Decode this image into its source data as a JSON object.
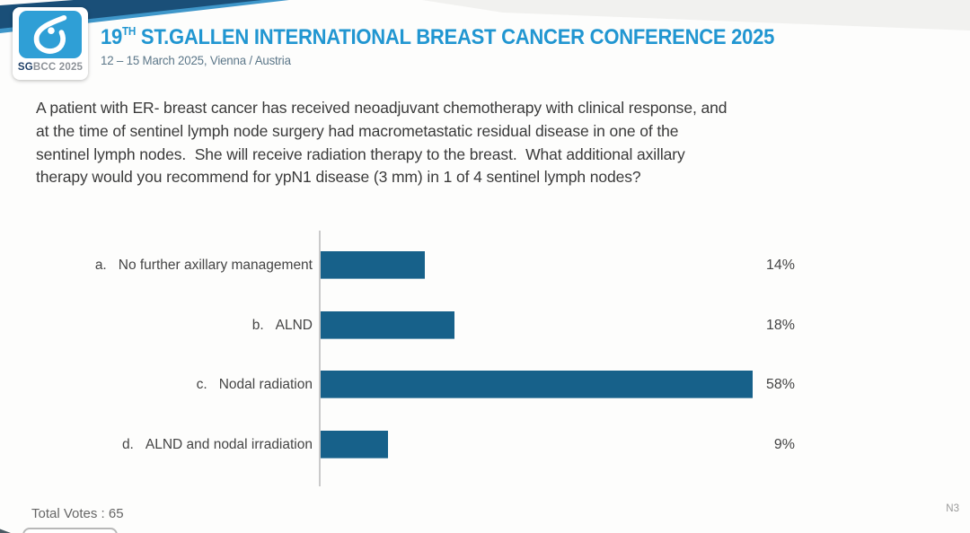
{
  "header": {
    "ribbon_navy_color": "#1a4f78",
    "ribbon_light_color": "#3e96c9",
    "logo": {
      "icon": "breast-outline-icon",
      "square_color": "#2f9fd6",
      "brand_bold": "SG",
      "brand_rest": "BCC 2025"
    },
    "title": {
      "prefix": "19",
      "superscript": "TH",
      "rest": " ST.GALLEN INTERNATIONAL BREAST CANCER CONFERENCE 2025",
      "color": "#2196d1"
    },
    "subtitle": "12 – 15 March 2025, Vienna / Austria"
  },
  "question": {
    "lines": [
      "A patient with ER- breast cancer has received neoadjuvant chemotherapy with clinical response, and",
      "at the time of sentinel lymph node surgery had macrometastatic residual disease in one of the",
      "sentinel lymph nodes.  She will receive radiation therapy to the breast.  What additional axillary",
      "therapy would you recommend for ypN1 disease (3 mm) in 1 of 4 sentinel lymph nodes?"
    ]
  },
  "chart_data": {
    "type": "bar",
    "orientation": "horizontal",
    "keys": [
      "a.",
      "b.",
      "c.",
      "d."
    ],
    "categories": [
      "No further axillary management",
      "ALND",
      "Nodal radiation",
      "ALND and nodal irradiation"
    ],
    "values": [
      14,
      18,
      58,
      9
    ],
    "value_labels": [
      "14%",
      "18%",
      "58%",
      "9%"
    ],
    "bar_color": "#17618a",
    "axis_color": "#cacaca",
    "xlim": [
      0,
      100
    ],
    "grid": false,
    "legend": false
  },
  "footer": {
    "total_votes_label": "Total Votes : 65",
    "slide_code": "N3"
  }
}
